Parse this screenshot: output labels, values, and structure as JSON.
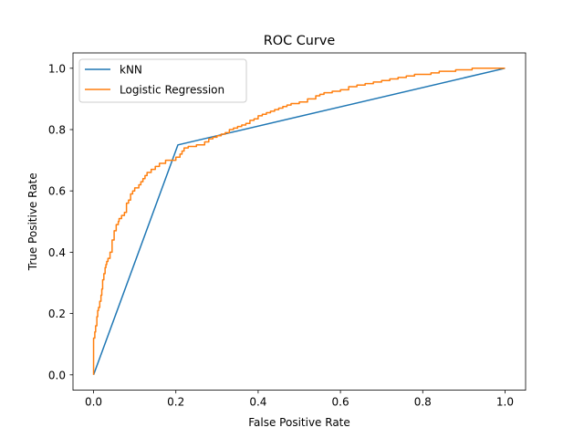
{
  "chart_data": {
    "type": "line",
    "title": "ROC Curve",
    "xlabel": "False Positive Rate",
    "ylabel": "True Positive Rate",
    "xlim": [
      -0.05,
      1.05
    ],
    "ylim": [
      -0.05,
      1.05
    ],
    "xticks": [
      0.0,
      0.2,
      0.4,
      0.6,
      0.8,
      1.0
    ],
    "yticks": [
      0.0,
      0.2,
      0.4,
      0.6,
      0.8,
      1.0
    ],
    "tick_labels": [
      "0.0",
      "0.2",
      "0.4",
      "0.6",
      "0.8",
      "1.0"
    ],
    "grid": false,
    "legend_position": "top-left",
    "series": [
      {
        "name": "kNN",
        "color": "#1f77b4",
        "step": false,
        "x": [
          0.0,
          0.205,
          1.0
        ],
        "y": [
          0.0,
          0.75,
          1.0
        ]
      },
      {
        "name": "Logistic Regression",
        "color": "#ff7f0e",
        "step": true,
        "x": [
          0.0,
          0.0,
          0.003,
          0.005,
          0.008,
          0.01,
          0.012,
          0.015,
          0.018,
          0.02,
          0.022,
          0.025,
          0.028,
          0.03,
          0.032,
          0.035,
          0.04,
          0.045,
          0.05,
          0.055,
          0.06,
          0.062,
          0.065,
          0.068,
          0.07,
          0.075,
          0.08,
          0.085,
          0.09,
          0.095,
          0.1,
          0.105,
          0.11,
          0.115,
          0.12,
          0.125,
          0.13,
          0.14,
          0.15,
          0.16,
          0.165,
          0.17,
          0.175,
          0.18,
          0.19,
          0.2,
          0.21,
          0.215,
          0.22,
          0.23,
          0.24,
          0.25,
          0.27,
          0.28,
          0.29,
          0.3,
          0.31,
          0.32,
          0.33,
          0.34,
          0.35,
          0.36,
          0.37,
          0.38,
          0.39,
          0.4,
          0.41,
          0.42,
          0.43,
          0.44,
          0.45,
          0.46,
          0.47,
          0.48,
          0.5,
          0.52,
          0.54,
          0.55,
          0.56,
          0.58,
          0.6,
          0.62,
          0.64,
          0.66,
          0.68,
          0.7,
          0.72,
          0.74,
          0.76,
          0.78,
          0.8,
          0.82,
          0.84,
          0.86,
          0.88,
          0.9,
          0.92,
          0.95,
          0.98,
          1.0
        ],
        "y": [
          0.0,
          0.12,
          0.14,
          0.16,
          0.19,
          0.21,
          0.22,
          0.24,
          0.26,
          0.28,
          0.31,
          0.33,
          0.35,
          0.36,
          0.37,
          0.38,
          0.4,
          0.44,
          0.47,
          0.49,
          0.5,
          0.51,
          0.51,
          0.52,
          0.52,
          0.53,
          0.56,
          0.57,
          0.59,
          0.6,
          0.61,
          0.61,
          0.62,
          0.63,
          0.64,
          0.65,
          0.66,
          0.67,
          0.68,
          0.69,
          0.69,
          0.69,
          0.7,
          0.7,
          0.7,
          0.71,
          0.72,
          0.73,
          0.74,
          0.745,
          0.745,
          0.75,
          0.76,
          0.77,
          0.775,
          0.78,
          0.785,
          0.79,
          0.8,
          0.805,
          0.81,
          0.815,
          0.82,
          0.83,
          0.835,
          0.845,
          0.85,
          0.855,
          0.86,
          0.865,
          0.87,
          0.875,
          0.88,
          0.885,
          0.89,
          0.9,
          0.91,
          0.915,
          0.92,
          0.925,
          0.93,
          0.94,
          0.945,
          0.95,
          0.955,
          0.96,
          0.965,
          0.97,
          0.975,
          0.98,
          0.98,
          0.985,
          0.99,
          0.99,
          0.995,
          0.995,
          1.0,
          1.0,
          1.0,
          1.0
        ]
      }
    ]
  }
}
